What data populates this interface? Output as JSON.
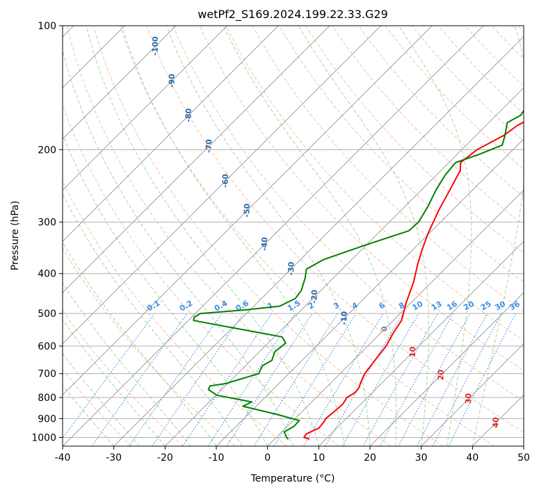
{
  "chart_data": {
    "type": "line",
    "title": "wetPf2_S169.2024.199.22.33.G29",
    "xlabel": "Temperature (°C)",
    "ylabel": "Pressure (hPa)",
    "xlim": [
      -40,
      50
    ],
    "ylim": [
      1050,
      100
    ],
    "y_scale": "log",
    "grid": true,
    "x_ticks": [
      -40,
      -30,
      -20,
      -10,
      0,
      10,
      20,
      30,
      40,
      50
    ],
    "y_ticks": [
      1000,
      900,
      800,
      700,
      600,
      500,
      400,
      300,
      200,
      100
    ],
    "colors": {
      "temperature": "#ff0000",
      "dewpoint": "#008000",
      "isotherm": "#a0a0a0",
      "dry_adiabat": "#f4a582",
      "moist_adiabat": "#8fc98f",
      "mixing_ratio": "#3b8ee6",
      "isotherm_label_neg": "#2a6aa6",
      "isotherm_label_pos": "#d62728",
      "isotherm_label_zero": "#7f7f7f",
      "grid": "#b0b0b0"
    },
    "series": [
      {
        "key": "temperature",
        "points": [
          [
            6.8,
            1010
          ],
          [
            5.4,
            1000
          ],
          [
            5.2,
            980
          ],
          [
            6.5,
            950
          ],
          [
            6.3,
            920
          ],
          [
            6.0,
            900
          ],
          [
            6.3,
            860
          ],
          [
            6.5,
            830
          ],
          [
            6.0,
            800
          ],
          [
            6.6,
            780
          ],
          [
            6.5,
            760
          ],
          [
            5.6,
            730
          ],
          [
            4.8,
            700
          ],
          [
            4.2,
            650
          ],
          [
            3.6,
            600
          ],
          [
            2.5,
            560
          ],
          [
            1.6,
            520
          ],
          [
            0.6,
            500
          ],
          [
            -1.0,
            470
          ],
          [
            -3.5,
            420
          ],
          [
            -6.2,
            380
          ],
          [
            -8.2,
            350
          ],
          [
            -10.2,
            320
          ],
          [
            -11.4,
            300
          ],
          [
            -12.7,
            280
          ],
          [
            -14.5,
            250
          ],
          [
            -16.2,
            225
          ],
          [
            -17.7,
            215
          ],
          [
            -17.5,
            210
          ],
          [
            -17.0,
            200
          ],
          [
            -14.6,
            185
          ],
          [
            -13.9,
            175
          ],
          [
            -11.3,
            160
          ],
          [
            -11.0,
            150
          ],
          [
            -11.0,
            140
          ],
          [
            -11.5,
            130
          ],
          [
            -12.4,
            120
          ],
          [
            -13.4,
            110
          ],
          [
            -14.2,
            100
          ]
        ]
      },
      {
        "key": "dewpoint",
        "points": [
          [
            2.7,
            1010
          ],
          [
            2.0,
            1000
          ],
          [
            0.5,
            970
          ],
          [
            1.3,
            940
          ],
          [
            1.2,
            910
          ],
          [
            -4.2,
            880
          ],
          [
            -12.6,
            840
          ],
          [
            -11.7,
            820
          ],
          [
            -19.8,
            790
          ],
          [
            -22.6,
            765
          ],
          [
            -23.0,
            750
          ],
          [
            -20.4,
            740
          ],
          [
            -15.9,
            700
          ],
          [
            -16.7,
            670
          ],
          [
            -15.9,
            650
          ],
          [
            -17.0,
            620
          ],
          [
            -16.6,
            590
          ],
          [
            -18.5,
            570
          ],
          [
            -39.0,
            520
          ],
          [
            -39.5,
            510
          ],
          [
            -39.0,
            500
          ],
          [
            -30.8,
            490
          ],
          [
            -25.0,
            480
          ],
          [
            -23.4,
            460
          ],
          [
            -23.8,
            440
          ],
          [
            -25.5,
            410
          ],
          [
            -27.0,
            390
          ],
          [
            -25.5,
            370
          ],
          [
            -20.0,
            340
          ],
          [
            -14.5,
            315
          ],
          [
            -14.3,
            300
          ],
          [
            -15.5,
            275
          ],
          [
            -17.2,
            250
          ],
          [
            -18.3,
            230
          ],
          [
            -18.7,
            215
          ],
          [
            -15.6,
            205
          ],
          [
            -13.0,
            195
          ],
          [
            -14.3,
            185
          ],
          [
            -16.4,
            172
          ],
          [
            -15.2,
            165
          ],
          [
            -16.0,
            155
          ],
          [
            -19.2,
            140
          ],
          [
            -23.0,
            120
          ],
          [
            -26.0,
            100
          ]
        ]
      }
    ],
    "isotherm_labels": [
      "-100",
      "-90",
      "-80",
      "-70",
      "-60",
      "-50",
      "-40",
      "-30",
      "-20",
      "-10",
      "0",
      "10",
      "20",
      "30",
      "40"
    ],
    "mixing_ratio_labels": [
      "0.1",
      "0.2",
      "0.4",
      "0.6",
      "1",
      "1.5",
      "2",
      "3",
      "4",
      "6",
      "8",
      "10",
      "13",
      "16",
      "20",
      "25",
      "30",
      "36"
    ]
  }
}
